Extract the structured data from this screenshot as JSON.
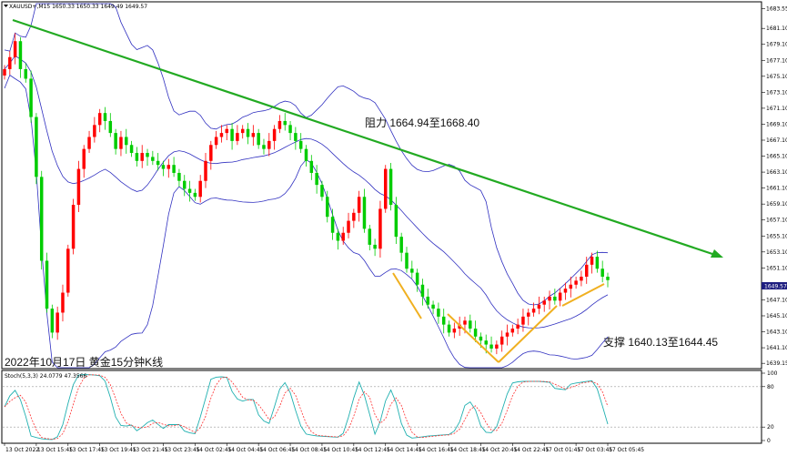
{
  "header": {
    "symbol_text": "XAUUSD+,M15  1650.33 1650.33 1649.49 1649.57"
  },
  "price_tag": "1649.57",
  "caption": "2022年10月17日 黄金15分钟K线",
  "annotations": {
    "resistance": "阻力 1664.94至1668.40",
    "support": "支撑 1640.13至1644.45"
  },
  "stoch_label": "Stoch(5,3,3) 24.0779 47.3566",
  "colors": {
    "bull": "#ff0000",
    "bear": "#00cc00",
    "band": "#3030c0",
    "trend": "#22aa22",
    "arrow": "#f0b020",
    "stoch_main": "#20b0b0",
    "stoch_signal": "#ff3030"
  },
  "chart_data": [
    {
      "type": "candlestick",
      "title": "",
      "instrument": "XAUUSD+",
      "timeframe": "M15",
      "ylim": [
        1638.6,
        1684.2
      ],
      "y_ticks": [
        "1683.55",
        "1681.10",
        "1679.10",
        "1677.10",
        "1675.10",
        "1673.10",
        "1671.10",
        "1669.10",
        "1667.10",
        "1665.10",
        "1663.10",
        "1661.10",
        "1659.10",
        "1657.10",
        "1655.10",
        "1653.10",
        "1651.10",
        "1647.10",
        "1645.10",
        "1643.10",
        "1641.10",
        "1639.15"
      ],
      "x_ticks": [
        "13 Oct 2022",
        "13 Oct 15:45",
        "13 Oct 17:45",
        "13 Oct 19:45",
        "13 Oct 21:45",
        "13 Oct 23:45",
        "14 Oct 02:45",
        "14 Oct 04:45",
        "14 Oct 06:45",
        "14 Oct 08:45",
        "14 Oct 10:45",
        "14 Oct 12:45",
        "14 Oct 14:45",
        "14 Oct 16:45",
        "14 Oct 18:45",
        "14 Oct 20:45",
        "14 Oct 22:45",
        "17 Oct 01:45",
        "17 Oct 03:45",
        "17 Oct 05:45"
      ],
      "close": [
        1676.0,
        1677.5,
        1679.5,
        1676.0,
        1674.8,
        1670.0,
        1662.5,
        1652.0,
        1646.0,
        1643.0,
        1645.5,
        1648.0,
        1653.5,
        1659.0,
        1663.5,
        1666.0,
        1667.5,
        1669.0,
        1670.5,
        1669.5,
        1668.0,
        1666.0,
        1667.5,
        1666.5,
        1665.5,
        1664.5,
        1665.5,
        1665.0,
        1664.5,
        1664.0,
        1663.5,
        1664.0,
        1663.0,
        1662.0,
        1661.0,
        1660.5,
        1660.0,
        1662.0,
        1664.5,
        1666.5,
        1667.5,
        1668.0,
        1668.5,
        1667.0,
        1668.0,
        1668.5,
        1667.5,
        1668.0,
        1666.5,
        1666.0,
        1667.0,
        1668.5,
        1669.5,
        1669.0,
        1668.0,
        1667.0,
        1666.0,
        1664.5,
        1663.0,
        1661.5,
        1660.0,
        1657.5,
        1655.5,
        1654.5,
        1655.5,
        1657.0,
        1658.0,
        1660.0,
        1656.0,
        1654.0,
        1653.5,
        1658.5,
        1663.5,
        1659.0,
        1655.0,
        1653.0,
        1651.0,
        1650.5,
        1649.0,
        1647.5,
        1646.5,
        1646.0,
        1645.0,
        1644.0,
        1643.0,
        1643.5,
        1644.0,
        1644.5,
        1643.5,
        1642.5,
        1642.0,
        1641.5,
        1641.0,
        1641.5,
        1642.5,
        1643.0,
        1643.5,
        1644.0,
        1645.0,
        1645.5,
        1646.0,
        1646.5,
        1647.0,
        1647.5,
        1647.0,
        1648.0,
        1648.5,
        1649.0,
        1649.5,
        1650.0,
        1651.5,
        1652.5,
        1651.0,
        1650.0,
        1649.57
      ],
      "resistance_range": [
        1664.94,
        1668.4
      ],
      "support_range": [
        1640.13,
        1644.45
      ]
    },
    {
      "type": "line",
      "title": "Stoch(5,3,3)",
      "ylim": [
        0,
        100
      ],
      "y_ticks": [
        "100",
        "80",
        "20",
        "0"
      ],
      "series": [
        {
          "name": "main",
          "last": 24.0779
        },
        {
          "name": "signal",
          "last": 47.3566
        }
      ]
    }
  ]
}
